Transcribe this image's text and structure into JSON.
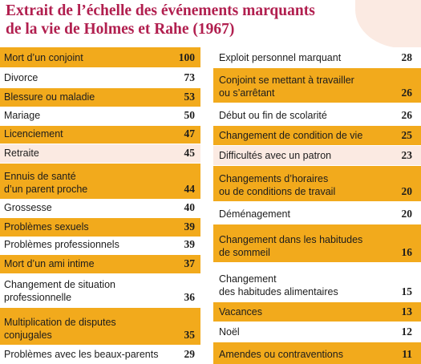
{
  "title": {
    "line1": "Extrait de l’échelle des événements marquants",
    "line2": "de la vie de Holmes et Rahe (1967)"
  },
  "left": [
    {
      "label": [
        "Mort d’un conjoint"
      ],
      "value": "100",
      "bg": "orange"
    },
    {
      "label": [
        "Divorce"
      ],
      "value": "73",
      "bg": "white"
    },
    {
      "label": [
        "Blessure ou maladie"
      ],
      "value": "53",
      "bg": "orange"
    },
    {
      "label": [
        "Mariage"
      ],
      "value": "50",
      "bg": "white"
    },
    {
      "label": [
        "Licenciement"
      ],
      "value": "47",
      "bg": "orange"
    },
    {
      "label": [
        "Retraite"
      ],
      "value": "45",
      "bg": "pink"
    },
    {
      "label": [
        "Ennuis de santé",
        "d’un parent proche"
      ],
      "value": "44",
      "bg": "orange"
    },
    {
      "label": [
        "Grossesse"
      ],
      "value": "40",
      "bg": "white"
    },
    {
      "label": [
        "Problèmes sexuels"
      ],
      "value": "39",
      "bg": "orange"
    },
    {
      "label": [
        "Problèmes professionnels"
      ],
      "value": "39",
      "bg": "white"
    },
    {
      "label": [
        "Mort d’un ami intime"
      ],
      "value": "37",
      "bg": "orange"
    },
    {
      "label": [
        "Changement de situation",
        "professionnelle"
      ],
      "value": "36",
      "bg": "white"
    },
    {
      "label": [
        "Multiplication de disputes",
        "conjugales"
      ],
      "value": "35",
      "bg": "orange"
    },
    {
      "label": [
        "Problèmes avec les beaux-parents"
      ],
      "value": "29",
      "bg": "white"
    }
  ],
  "right": [
    {
      "label": [
        "Exploit personnel marquant"
      ],
      "value": "28",
      "bg": "white"
    },
    {
      "label": [
        "Conjoint se mettant à travailler",
        "ou s’arrêtant"
      ],
      "value": "26",
      "bg": "orange"
    },
    {
      "label": [
        "Début ou fin de scolarité"
      ],
      "value": "26",
      "bg": "white"
    },
    {
      "label": [
        "Changement de condition de vie"
      ],
      "value": "25",
      "bg": "orange"
    },
    {
      "label": [
        "Difficultés avec un patron"
      ],
      "value": "23",
      "bg": "pink"
    },
    {
      "label": [
        "Changements d’horaires",
        "ou de conditions de travail"
      ],
      "value": "20",
      "bg": "orange"
    },
    {
      "label": [
        "Déménagement"
      ],
      "value": "20",
      "bg": "white"
    },
    {
      "label": [
        "Changement  dans les habitudes",
        "de sommeil"
      ],
      "value": "16",
      "bg": "orange"
    },
    {
      "label": [
        "Changement",
        "des habitudes alimentaires"
      ],
      "value": "15",
      "bg": "white"
    },
    {
      "label": [
        "Vacances"
      ],
      "value": "13",
      "bg": "orange"
    },
    {
      "label": [
        "Noël"
      ],
      "value": "12",
      "bg": "white"
    },
    {
      "label": [
        "Amendes ou contraventions"
      ],
      "value": "11",
      "bg": "orange"
    }
  ],
  "colors": {
    "title": "#b11f4f",
    "orange": "#f2aa1c",
    "pink": "#fbeae2",
    "white": "#ffffff"
  }
}
